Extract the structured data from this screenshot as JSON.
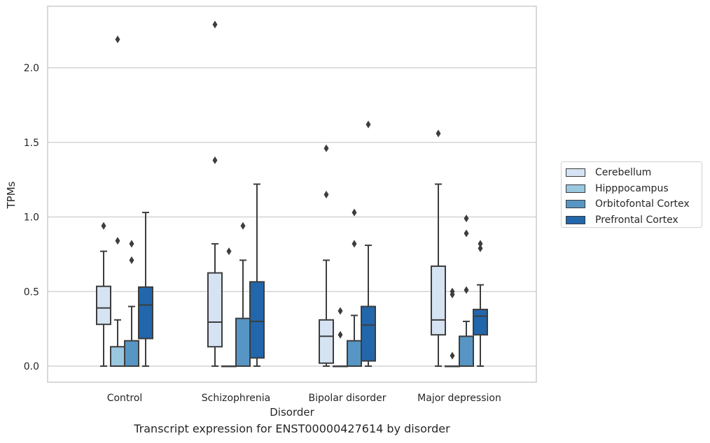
{
  "chart_data": {
    "type": "box",
    "title": "",
    "caption": "Transcript expression for ENST00000427614 by disorder",
    "xlabel": "Disorder",
    "ylabel": "TPMs",
    "ylim": [
      -0.11,
      2.42
    ],
    "yticks": [
      "0.0",
      "0.5",
      "1.0",
      "1.5",
      "2.0"
    ],
    "grid": "horizontal",
    "legend_position": "outside right",
    "categories": [
      "Control",
      "Schizophrenia",
      "Bipolar disorder",
      "Major depression"
    ],
    "series": [
      {
        "name": "Cerebellum",
        "color": "#d5e3f3",
        "boxes": [
          {
            "whislo": 0.0,
            "q1": 0.28,
            "med": 0.39,
            "q3": 0.535,
            "whishi": 0.77,
            "fliers": [
              0.94
            ]
          },
          {
            "whislo": 0.0,
            "q1": 0.13,
            "med": 0.295,
            "q3": 0.625,
            "whishi": 0.82,
            "fliers": [
              1.38,
              2.29
            ]
          },
          {
            "whislo": 0.0,
            "q1": 0.02,
            "med": 0.2,
            "q3": 0.31,
            "whishi": 0.71,
            "fliers": [
              1.15,
              1.46
            ]
          },
          {
            "whislo": 0.0,
            "q1": 0.21,
            "med": 0.31,
            "q3": 0.67,
            "whishi": 1.22,
            "fliers": [
              1.56
            ]
          }
        ]
      },
      {
        "name": "Hipppocampus",
        "color": "#9ac8e0",
        "boxes": [
          {
            "whislo": 0.0,
            "q1": 0.0,
            "med": 0.0,
            "q3": 0.13,
            "whishi": 0.31,
            "fliers": [
              0.84,
              2.19
            ]
          },
          {
            "whislo": 0.0,
            "q1": 0.0,
            "med": 0.0,
            "q3": 0.0,
            "whishi": 0.0,
            "fliers": [
              0.77
            ]
          },
          {
            "whislo": 0.0,
            "q1": 0.0,
            "med": 0.0,
            "q3": 0.0,
            "whishi": 0.0,
            "fliers": [
              0.21,
              0.37
            ]
          },
          {
            "whislo": 0.0,
            "q1": 0.0,
            "med": 0.0,
            "q3": 0.0,
            "whishi": 0.0,
            "fliers": [
              0.07,
              0.48,
              0.5
            ]
          }
        ]
      },
      {
        "name": "Orbitofontal Cortex",
        "color": "#5796c4",
        "boxes": [
          {
            "whislo": 0.0,
            "q1": 0.0,
            "med": 0.0,
            "q3": 0.17,
            "whishi": 0.4,
            "fliers": [
              0.71,
              0.82
            ]
          },
          {
            "whislo": 0.0,
            "q1": 0.0,
            "med": 0.0,
            "q3": 0.32,
            "whishi": 0.71,
            "fliers": [
              0.94
            ]
          },
          {
            "whislo": 0.0,
            "q1": 0.0,
            "med": 0.0,
            "q3": 0.17,
            "whishi": 0.34,
            "fliers": [
              0.82,
              1.03
            ]
          },
          {
            "whislo": 0.0,
            "q1": 0.0,
            "med": 0.0,
            "q3": 0.2,
            "whishi": 0.3,
            "fliers": [
              0.51,
              0.89,
              0.99
            ]
          }
        ]
      },
      {
        "name": "Prefrontal Cortex",
        "color": "#2266ab",
        "boxes": [
          {
            "whislo": 0.0,
            "q1": 0.185,
            "med": 0.41,
            "q3": 0.53,
            "whishi": 1.03,
            "fliers": []
          },
          {
            "whislo": 0.0,
            "q1": 0.055,
            "med": 0.3,
            "q3": 0.565,
            "whishi": 1.22,
            "fliers": []
          },
          {
            "whislo": 0.0,
            "q1": 0.035,
            "med": 0.275,
            "q3": 0.4,
            "whishi": 0.81,
            "fliers": [
              1.62
            ]
          },
          {
            "whislo": 0.0,
            "q1": 0.21,
            "med": 0.335,
            "q3": 0.38,
            "whishi": 0.545,
            "fliers": [
              0.79,
              0.82
            ]
          }
        ]
      }
    ]
  }
}
